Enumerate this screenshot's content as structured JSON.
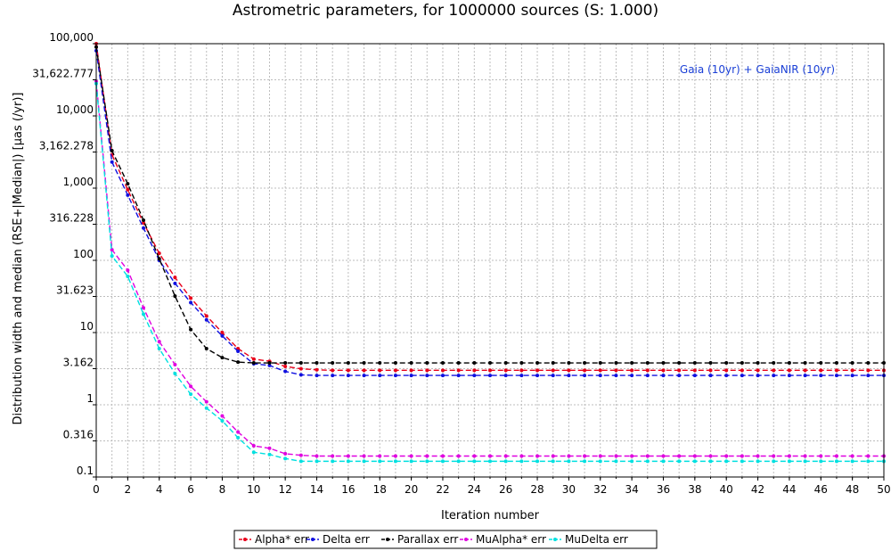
{
  "chart_data": {
    "type": "line",
    "title": "Astrometric parameters, for 1000000 sources (S: 1.000)",
    "xlabel": "Iteration number",
    "ylabel": "Distribution width and median (RSE+|Median|) [µas (/yr)]",
    "annotation": "Gaia (10yr) + GaiaNIR (10yr)",
    "annotation_color": "#1a3fd6",
    "xlim": [
      0,
      50
    ],
    "ylim": [
      0.1,
      100000
    ],
    "yscale": "log",
    "grid": true,
    "legend_position": "bottom",
    "x_ticks": [
      "0",
      "2",
      "4",
      "6",
      "8",
      "10",
      "12",
      "14",
      "16",
      "18",
      "20",
      "22",
      "24",
      "26",
      "28",
      "30",
      "32",
      "34",
      "36",
      "38",
      "40",
      "42",
      "44",
      "46",
      "48",
      "50"
    ],
    "y_ticks": [
      {
        "value": 100000,
        "label": "100,000"
      },
      {
        "value": 31622.777,
        "label": "31,622.777"
      },
      {
        "value": 10000,
        "label": "10,000"
      },
      {
        "value": 3162.278,
        "label": "3,162.278"
      },
      {
        "value": 1000,
        "label": "1,000"
      },
      {
        "value": 316.228,
        "label": "316.228"
      },
      {
        "value": 100,
        "label": "100"
      },
      {
        "value": 31.623,
        "label": "31.623"
      },
      {
        "value": 10,
        "label": "10"
      },
      {
        "value": 3.162,
        "label": "3.162"
      },
      {
        "value": 1,
        "label": "1"
      },
      {
        "value": 0.316,
        "label": "0.316"
      },
      {
        "value": 0.1,
        "label": "0.1"
      }
    ],
    "x": [
      0,
      1,
      2,
      3,
      4,
      5,
      6,
      7,
      8,
      9,
      10,
      11,
      12,
      13,
      14,
      15,
      16,
      17,
      18,
      19,
      20,
      21,
      22,
      23,
      24,
      25,
      26,
      27,
      28,
      29,
      30,
      31,
      32,
      33,
      34,
      35,
      36,
      37,
      38,
      39,
      40,
      41,
      42,
      43,
      44,
      45,
      46,
      47,
      48,
      49,
      50
    ],
    "series": [
      {
        "name": "Alpha* err",
        "color": "#e8001a",
        "values": [
          100000,
          2900,
          950,
          330,
          125,
          58,
          30,
          17,
          10,
          6,
          4.3,
          4.0,
          3.4,
          3.15,
          3.05,
          3.0,
          3.0,
          3.0,
          3.0,
          3.0,
          3.0,
          3.0,
          3.0,
          3.0,
          3.0,
          3.0,
          3.0,
          3.0,
          3.0,
          3.0,
          3.0,
          3.0,
          3.0,
          3.0,
          3.0,
          3.0,
          3.0,
          3.0,
          3.0,
          3.0,
          3.0,
          3.0,
          3.0,
          3.0,
          3.0,
          3.0,
          3.0,
          3.0,
          3.0,
          3.0,
          3.0
        ]
      },
      {
        "name": "Delta err",
        "color": "#1010e0",
        "values": [
          80000,
          2300,
          800,
          280,
          100,
          48,
          26,
          15,
          9,
          5.5,
          3.7,
          3.5,
          2.9,
          2.6,
          2.55,
          2.55,
          2.55,
          2.55,
          2.55,
          2.55,
          2.55,
          2.55,
          2.55,
          2.55,
          2.55,
          2.55,
          2.55,
          2.55,
          2.55,
          2.55,
          2.55,
          2.55,
          2.55,
          2.55,
          2.55,
          2.55,
          2.55,
          2.55,
          2.55,
          2.55,
          2.55,
          2.55,
          2.55,
          2.55,
          2.55,
          2.55,
          2.55,
          2.55,
          2.55,
          2.55,
          2.55
        ]
      },
      {
        "name": "Parallax err",
        "color": "#000000",
        "values": [
          90000,
          3300,
          1150,
          360,
          105,
          32,
          11,
          6,
          4.5,
          3.9,
          3.8,
          3.8,
          3.8,
          3.8,
          3.8,
          3.8,
          3.8,
          3.8,
          3.8,
          3.8,
          3.8,
          3.8,
          3.8,
          3.8,
          3.8,
          3.8,
          3.8,
          3.8,
          3.8,
          3.8,
          3.8,
          3.8,
          3.8,
          3.8,
          3.8,
          3.8,
          3.8,
          3.8,
          3.8,
          3.8,
          3.8,
          3.8,
          3.8,
          3.8,
          3.8,
          3.8,
          3.8,
          3.8,
          3.8,
          3.8,
          3.8
        ]
      },
      {
        "name": "MuAlpha* err",
        "color": "#e000e0",
        "values": [
          30000,
          140,
          73,
          22,
          7.5,
          3.6,
          1.8,
          1.1,
          0.7,
          0.42,
          0.27,
          0.25,
          0.21,
          0.2,
          0.195,
          0.195,
          0.195,
          0.195,
          0.195,
          0.195,
          0.195,
          0.195,
          0.195,
          0.195,
          0.195,
          0.195,
          0.195,
          0.195,
          0.195,
          0.195,
          0.195,
          0.195,
          0.195,
          0.195,
          0.195,
          0.195,
          0.195,
          0.195,
          0.195,
          0.195,
          0.195,
          0.195,
          0.195,
          0.195,
          0.195,
          0.195,
          0.195,
          0.195,
          0.195,
          0.195,
          0.195
        ]
      },
      {
        "name": "MuDelta err",
        "color": "#00e0e0",
        "values": [
          28000,
          115,
          60,
          18,
          6.0,
          2.7,
          1.4,
          0.9,
          0.6,
          0.35,
          0.22,
          0.205,
          0.18,
          0.165,
          0.165,
          0.165,
          0.165,
          0.165,
          0.165,
          0.165,
          0.165,
          0.165,
          0.165,
          0.165,
          0.165,
          0.165,
          0.165,
          0.165,
          0.165,
          0.165,
          0.165,
          0.165,
          0.165,
          0.165,
          0.165,
          0.165,
          0.165,
          0.165,
          0.165,
          0.165,
          0.165,
          0.165,
          0.165,
          0.165,
          0.165,
          0.165,
          0.165,
          0.165,
          0.165,
          0.165,
          0.165
        ]
      }
    ]
  }
}
